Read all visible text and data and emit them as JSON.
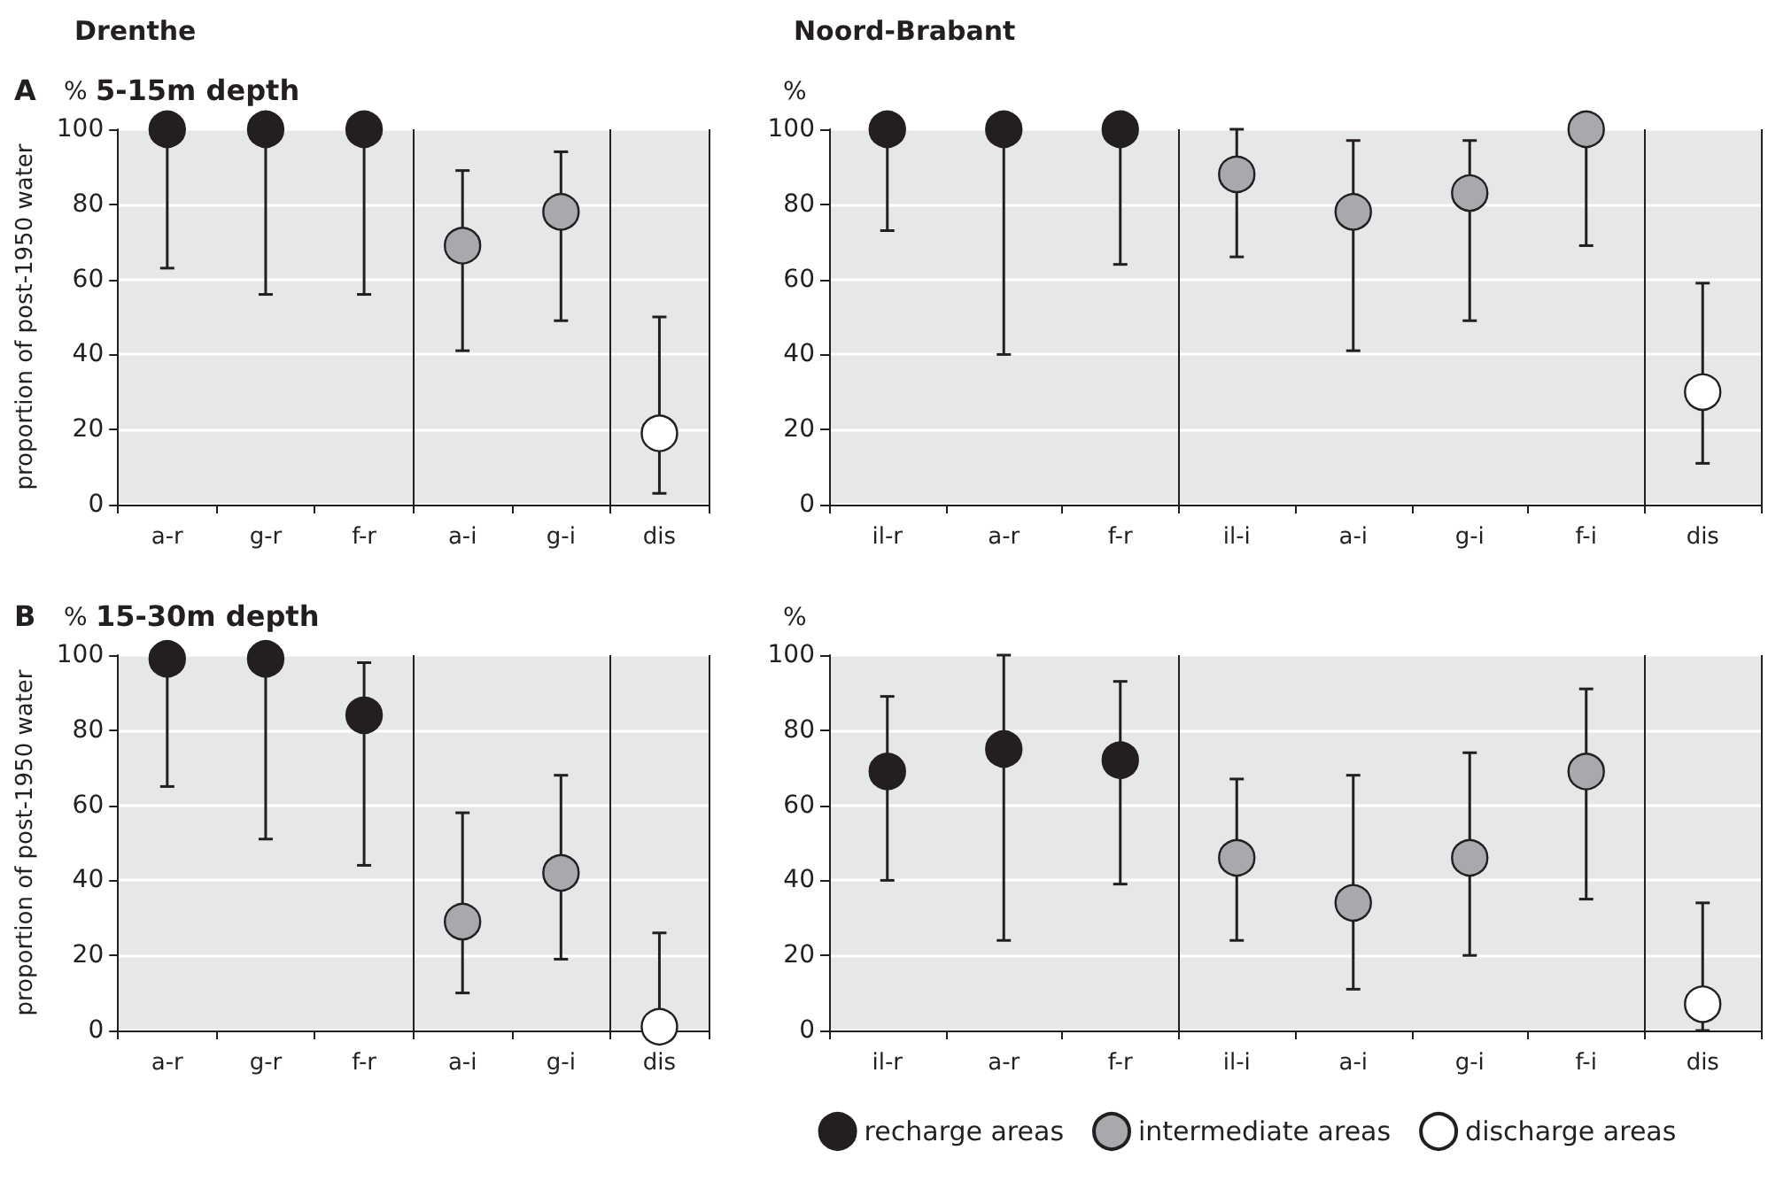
{
  "chart_data": [
    {
      "type": "scatter",
      "title": "Drenthe",
      "subtitle": "5-15m depth",
      "ylabel": "proportion of post-1950 water",
      "annotations": [
        "A",
        "%"
      ],
      "categories": [
        "a-r",
        "g-r",
        "f-r",
        "a-i",
        "g-i",
        "dis"
      ],
      "ylim": [
        0,
        100
      ],
      "yticks": [
        0,
        20,
        40,
        60,
        80,
        100
      ],
      "grid": "y",
      "legend": false,
      "marker": "circle",
      "series": [
        {
          "color": "#231f20",
          "values": [
            100,
            100,
            100,
            null,
            null,
            null
          ],
          "errors": [
            [
              63,
              100
            ],
            [
              56,
              100
            ],
            [
              56,
              100
            ],
            null,
            null,
            null
          ]
        },
        {
          "color": "#a7a9ac",
          "values": [
            null,
            null,
            null,
            69,
            78,
            null
          ],
          "errors": [
            null,
            null,
            null,
            [
              41,
              89
            ],
            [
              49,
              94
            ],
            null
          ]
        },
        {
          "color": "#ffffff",
          "values": [
            null,
            null,
            null,
            null,
            null,
            19
          ],
          "errors": [
            null,
            null,
            null,
            null,
            null,
            [
              3,
              50
            ]
          ]
        }
      ]
    },
    {
      "type": "scatter",
      "title": "Noord-Brabant",
      "annotations": [
        "%"
      ],
      "categories": [
        "il-r",
        "a-r",
        "f-r",
        "il-i",
        "a-i",
        "g-i",
        "f-i",
        "dis"
      ],
      "ylim": [
        0,
        100
      ],
      "yticks": [
        0,
        20,
        40,
        60,
        80,
        100
      ],
      "grid": "y",
      "legend": false,
      "marker": "circle",
      "series": [
        {
          "color": "#231f20",
          "values": [
            100,
            100,
            100,
            null,
            null,
            null,
            null,
            null
          ],
          "errors": [
            [
              73,
              100
            ],
            [
              40,
              100
            ],
            [
              64,
              100
            ],
            null,
            null,
            null,
            null,
            null
          ]
        },
        {
          "color": "#a7a9ac",
          "values": [
            null,
            null,
            null,
            88,
            78,
            83,
            100,
            null
          ],
          "errors": [
            null,
            null,
            null,
            [
              66,
              100
            ],
            [
              41,
              97
            ],
            [
              49,
              97
            ],
            [
              69,
              100
            ],
            null
          ]
        },
        {
          "color": "#ffffff",
          "values": [
            null,
            null,
            null,
            null,
            null,
            null,
            null,
            30
          ],
          "errors": [
            null,
            null,
            null,
            null,
            null,
            null,
            null,
            [
              11,
              59
            ]
          ]
        }
      ]
    },
    {
      "type": "scatter",
      "subtitle": "15-30m depth",
      "ylabel": "proportion of post-1950 water",
      "annotations": [
        "B",
        "%"
      ],
      "categories": [
        "a-r",
        "g-r",
        "f-r",
        "a-i",
        "g-i",
        "dis"
      ],
      "ylim": [
        0,
        100
      ],
      "yticks": [
        0,
        20,
        40,
        60,
        80,
        100
      ],
      "grid": "y",
      "legend": false,
      "marker": "circle",
      "series": [
        {
          "color": "#231f20",
          "values": [
            99,
            99,
            84,
            null,
            null,
            null
          ],
          "errors": [
            [
              65,
              99
            ],
            [
              51,
              99
            ],
            [
              44,
              98
            ],
            null,
            null,
            null
          ]
        },
        {
          "color": "#a7a9ac",
          "values": [
            null,
            null,
            null,
            29,
            42,
            null
          ],
          "errors": [
            null,
            null,
            null,
            [
              10,
              58
            ],
            [
              19,
              68
            ],
            null
          ]
        },
        {
          "color": "#ffffff",
          "values": [
            null,
            null,
            null,
            null,
            null,
            1
          ],
          "errors": [
            null,
            null,
            null,
            null,
            null,
            [
              1,
              26
            ]
          ]
        }
      ]
    },
    {
      "type": "scatter",
      "annotations": [
        "%"
      ],
      "categories": [
        "il-r",
        "a-r",
        "f-r",
        "il-i",
        "a-i",
        "g-i",
        "f-i",
        "dis"
      ],
      "ylim": [
        0,
        100
      ],
      "yticks": [
        0,
        20,
        40,
        60,
        80,
        100
      ],
      "grid": "y",
      "legend": "bottom",
      "marker": "circle",
      "series": [
        {
          "name": "recharge areas",
          "color": "#231f20",
          "values": [
            69,
            75,
            72,
            null,
            null,
            null,
            null,
            null
          ],
          "errors": [
            [
              40,
              89
            ],
            [
              24,
              100
            ],
            [
              39,
              93
            ],
            null,
            null,
            null,
            null,
            null
          ]
        },
        {
          "name": "intermediate areas",
          "color": "#a7a9ac",
          "values": [
            null,
            null,
            null,
            46,
            34,
            46,
            69,
            null
          ],
          "errors": [
            null,
            null,
            null,
            [
              24,
              67
            ],
            [
              11,
              68
            ],
            [
              20,
              74
            ],
            [
              35,
              91
            ],
            null
          ]
        },
        {
          "name": "discharge areas",
          "color": "#ffffff",
          "values": [
            null,
            null,
            null,
            null,
            null,
            null,
            null,
            7
          ],
          "errors": [
            null,
            null,
            null,
            null,
            null,
            null,
            null,
            [
              0,
              34
            ]
          ]
        }
      ]
    }
  ]
}
